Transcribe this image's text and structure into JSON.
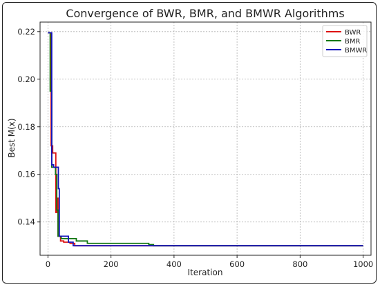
{
  "chart_data": {
    "type": "line",
    "title": "Convergence of BWR, BMR, and BMWR Algorithms",
    "xlabel": "Iteration",
    "ylabel": "Best M(x)",
    "xlim": [
      -25,
      1025
    ],
    "ylim": [
      0.126,
      0.224
    ],
    "xticks": [
      0,
      200,
      400,
      600,
      800,
      1000
    ],
    "yticks": [
      0.14,
      0.16,
      0.18,
      0.2,
      0.22
    ],
    "ytick_labels": [
      "0.14",
      "0.16",
      "0.18",
      "0.20",
      "0.22"
    ],
    "grid": true,
    "legend_position": "top-right",
    "series": [
      {
        "name": "BWR",
        "color": "#dd1111",
        "points": [
          [
            0,
            0.2195
          ],
          [
            10,
            0.2195
          ],
          [
            10,
            0.172
          ],
          [
            15,
            0.172
          ],
          [
            15,
            0.169
          ],
          [
            25,
            0.169
          ],
          [
            25,
            0.144
          ],
          [
            28,
            0.144
          ],
          [
            28,
            0.15
          ],
          [
            32,
            0.15
          ],
          [
            32,
            0.134
          ],
          [
            40,
            0.134
          ],
          [
            40,
            0.132
          ],
          [
            50,
            0.132
          ],
          [
            50,
            0.1315
          ],
          [
            70,
            0.1315
          ],
          [
            70,
            0.131
          ],
          [
            85,
            0.131
          ],
          [
            85,
            0.13
          ],
          [
            1000,
            0.13
          ]
        ]
      },
      {
        "name": "BMR",
        "color": "#127712",
        "points": [
          [
            0,
            0.2195
          ],
          [
            7,
            0.2195
          ],
          [
            7,
            0.195
          ],
          [
            12,
            0.195
          ],
          [
            12,
            0.163
          ],
          [
            24,
            0.163
          ],
          [
            24,
            0.16
          ],
          [
            28,
            0.16
          ],
          [
            28,
            0.145
          ],
          [
            32,
            0.145
          ],
          [
            32,
            0.134
          ],
          [
            42,
            0.134
          ],
          [
            42,
            0.133
          ],
          [
            90,
            0.133
          ],
          [
            90,
            0.132
          ],
          [
            125,
            0.132
          ],
          [
            125,
            0.131
          ],
          [
            320,
            0.131
          ],
          [
            320,
            0.1305
          ],
          [
            335,
            0.1305
          ],
          [
            335,
            0.13
          ],
          [
            1000,
            0.13
          ]
        ]
      },
      {
        "name": "BMWR",
        "color": "#1212bb",
        "points": [
          [
            0,
            0.2195
          ],
          [
            12,
            0.2195
          ],
          [
            12,
            0.164
          ],
          [
            18,
            0.164
          ],
          [
            18,
            0.163
          ],
          [
            33,
            0.163
          ],
          [
            33,
            0.154
          ],
          [
            36,
            0.154
          ],
          [
            36,
            0.134
          ],
          [
            65,
            0.134
          ],
          [
            65,
            0.1315
          ],
          [
            80,
            0.1315
          ],
          [
            80,
            0.13
          ],
          [
            1000,
            0.13
          ]
        ]
      }
    ]
  }
}
